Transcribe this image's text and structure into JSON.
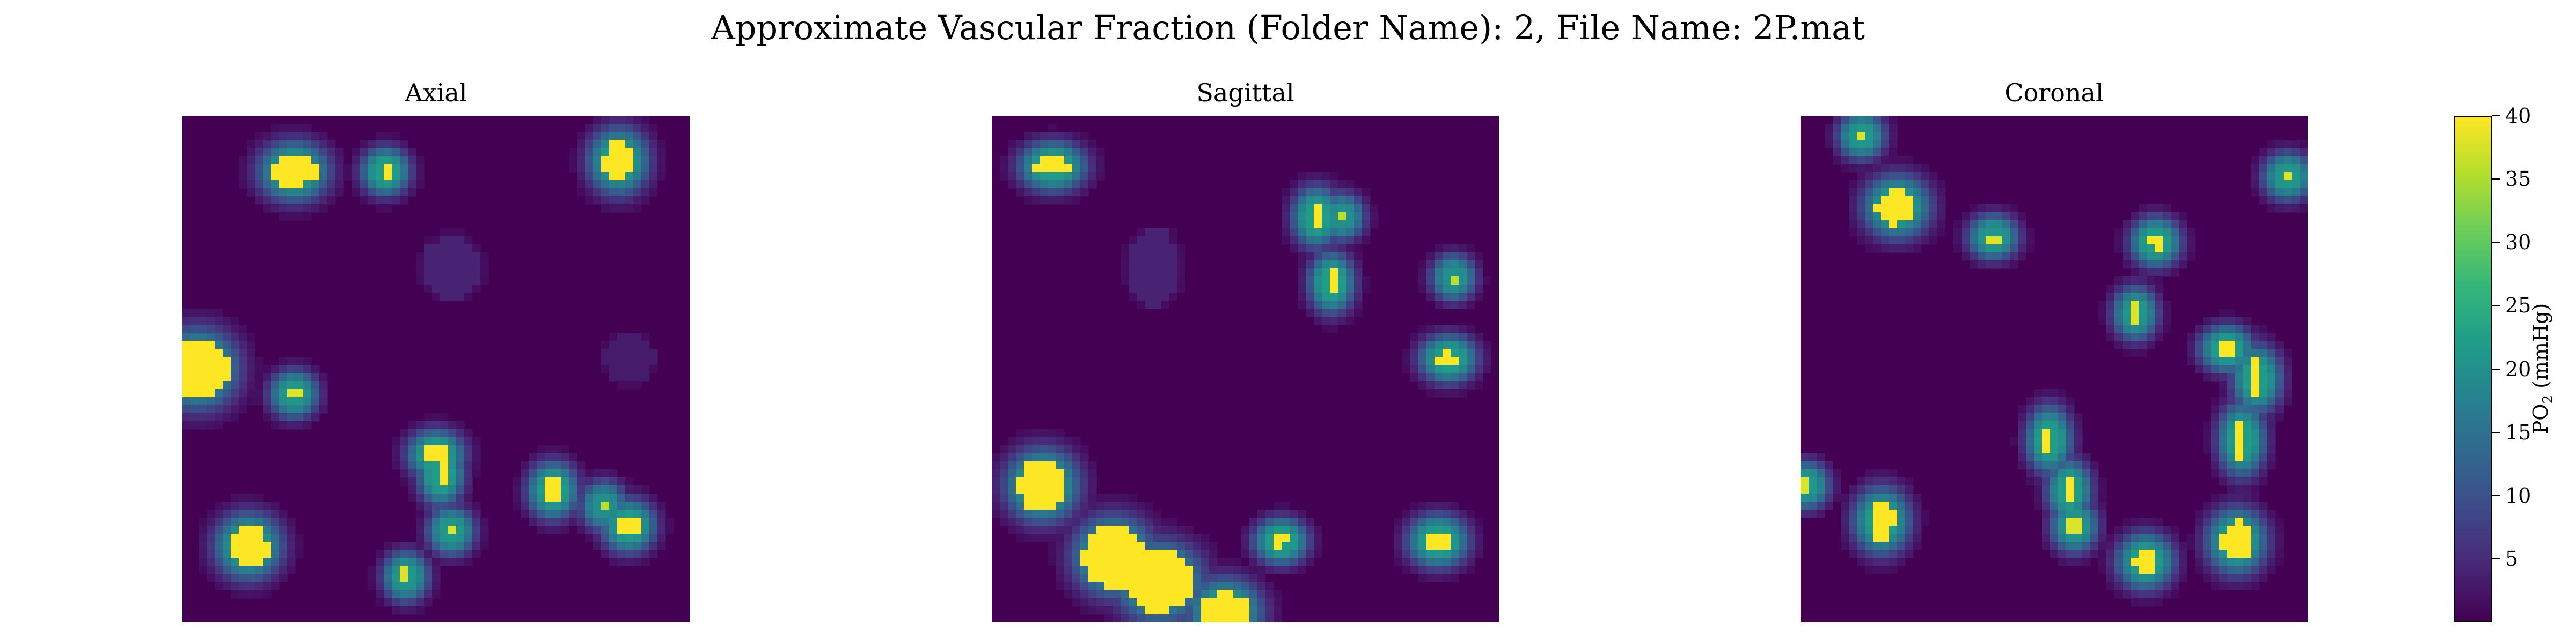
{
  "figure": {
    "title": "Approximate Vascular Fraction (Folder Name): 2, File Name: 2P.mat"
  },
  "colors": {
    "colormap": [
      "#440154",
      "#482777",
      "#3e4a89",
      "#31688e",
      "#26828e",
      "#1f9e89",
      "#35b779",
      "#6ece58",
      "#b5de2b",
      "#fde725"
    ]
  },
  "chart_data": {
    "type": "heatmap",
    "title": "Approximate Vascular Fraction (Folder Name): 2, File Name: 2P.mat",
    "colormap": "viridis",
    "value_range": [
      0,
      40
    ],
    "grid": false,
    "axes_visible": false,
    "panels": [
      {
        "name": "Axial",
        "title": "Axial",
        "hotspots": [
          {
            "x": 0.22,
            "y": 0.11,
            "rx": 0.045,
            "ry": 0.03,
            "peak": 40
          },
          {
            "x": 0.4,
            "y": 0.11,
            "rx": 0.012,
            "ry": 0.012,
            "peak": 40
          },
          {
            "x": 0.86,
            "y": 0.09,
            "rx": 0.03,
            "ry": 0.04,
            "peak": 40
          },
          {
            "x": 0.03,
            "y": 0.5,
            "rx": 0.06,
            "ry": 0.06,
            "peak": 40
          },
          {
            "x": 0.22,
            "y": 0.55,
            "rx": 0.012,
            "ry": 0.012,
            "peak": 38
          },
          {
            "x": 0.5,
            "y": 0.67,
            "rx": 0.025,
            "ry": 0.015,
            "peak": 40
          },
          {
            "x": 0.51,
            "y": 0.71,
            "rx": 0.008,
            "ry": 0.03,
            "peak": 40
          },
          {
            "x": 0.73,
            "y": 0.74,
            "rx": 0.015,
            "ry": 0.025,
            "peak": 40
          },
          {
            "x": 0.88,
            "y": 0.81,
            "rx": 0.02,
            "ry": 0.02,
            "peak": 40
          },
          {
            "x": 0.83,
            "y": 0.77,
            "rx": 0.008,
            "ry": 0.012,
            "peak": 36
          },
          {
            "x": 0.53,
            "y": 0.82,
            "rx": 0.01,
            "ry": 0.012,
            "peak": 38
          },
          {
            "x": 0.13,
            "y": 0.85,
            "rx": 0.04,
            "ry": 0.04,
            "peak": 40
          },
          {
            "x": 0.44,
            "y": 0.91,
            "rx": 0.008,
            "ry": 0.015,
            "peak": 38
          },
          {
            "x": 0.53,
            "y": 0.3,
            "rx": 0.06,
            "ry": 0.06,
            "peak": 4
          },
          {
            "x": 0.88,
            "y": 0.48,
            "rx": 0.05,
            "ry": 0.05,
            "peak": 3
          }
        ]
      },
      {
        "name": "Sagittal",
        "title": "Sagittal",
        "hotspots": [
          {
            "x": 0.12,
            "y": 0.1,
            "rx": 0.04,
            "ry": 0.015,
            "peak": 40
          },
          {
            "x": 0.64,
            "y": 0.2,
            "rx": 0.012,
            "ry": 0.03,
            "peak": 40
          },
          {
            "x": 0.69,
            "y": 0.2,
            "rx": 0.008,
            "ry": 0.01,
            "peak": 36
          },
          {
            "x": 0.67,
            "y": 0.33,
            "rx": 0.008,
            "ry": 0.03,
            "peak": 40
          },
          {
            "x": 0.91,
            "y": 0.32,
            "rx": 0.006,
            "ry": 0.008,
            "peak": 36
          },
          {
            "x": 0.9,
            "y": 0.48,
            "rx": 0.025,
            "ry": 0.012,
            "peak": 40
          },
          {
            "x": 0.1,
            "y": 0.73,
            "rx": 0.05,
            "ry": 0.05,
            "peak": 40
          },
          {
            "x": 0.24,
            "y": 0.87,
            "rx": 0.06,
            "ry": 0.06,
            "peak": 40
          },
          {
            "x": 0.33,
            "y": 0.92,
            "rx": 0.07,
            "ry": 0.06,
            "peak": 40
          },
          {
            "x": 0.46,
            "y": 0.98,
            "rx": 0.05,
            "ry": 0.04,
            "peak": 40
          },
          {
            "x": 0.57,
            "y": 0.84,
            "rx": 0.02,
            "ry": 0.01,
            "peak": 40
          },
          {
            "x": 0.88,
            "y": 0.84,
            "rx": 0.03,
            "ry": 0.02,
            "peak": 40
          },
          {
            "x": 0.32,
            "y": 0.3,
            "rx": 0.05,
            "ry": 0.08,
            "peak": 4
          }
        ]
      },
      {
        "name": "Coronal",
        "title": "Coronal",
        "hotspots": [
          {
            "x": 0.12,
            "y": 0.04,
            "rx": 0.01,
            "ry": 0.01,
            "peak": 38
          },
          {
            "x": 0.96,
            "y": 0.12,
            "rx": 0.012,
            "ry": 0.012,
            "peak": 38
          },
          {
            "x": 0.19,
            "y": 0.18,
            "rx": 0.04,
            "ry": 0.035,
            "peak": 40
          },
          {
            "x": 0.38,
            "y": 0.24,
            "rx": 0.015,
            "ry": 0.008,
            "peak": 38
          },
          {
            "x": 0.7,
            "y": 0.25,
            "rx": 0.015,
            "ry": 0.015,
            "peak": 40
          },
          {
            "x": 0.66,
            "y": 0.39,
            "rx": 0.006,
            "ry": 0.02,
            "peak": 38
          },
          {
            "x": 0.84,
            "y": 0.46,
            "rx": 0.02,
            "ry": 0.01,
            "peak": 40
          },
          {
            "x": 0.9,
            "y": 0.52,
            "rx": 0.012,
            "ry": 0.04,
            "peak": 40
          },
          {
            "x": 0.87,
            "y": 0.64,
            "rx": 0.01,
            "ry": 0.05,
            "peak": 40
          },
          {
            "x": 0.49,
            "y": 0.64,
            "rx": 0.008,
            "ry": 0.04,
            "peak": 40
          },
          {
            "x": 0.53,
            "y": 0.74,
            "rx": 0.006,
            "ry": 0.03,
            "peak": 40
          },
          {
            "x": 0.01,
            "y": 0.73,
            "rx": 0.01,
            "ry": 0.01,
            "peak": 38
          },
          {
            "x": 0.16,
            "y": 0.8,
            "rx": 0.025,
            "ry": 0.04,
            "peak": 40
          },
          {
            "x": 0.54,
            "y": 0.81,
            "rx": 0.01,
            "ry": 0.02,
            "peak": 38
          },
          {
            "x": 0.68,
            "y": 0.88,
            "rx": 0.025,
            "ry": 0.025,
            "peak": 40
          },
          {
            "x": 0.86,
            "y": 0.84,
            "rx": 0.03,
            "ry": 0.04,
            "peak": 40
          }
        ]
      }
    ],
    "colorbar": {
      "label": "PO",
      "label_subscript": "2",
      "label_unit": " (mmHg)",
      "ticks": [
        5,
        10,
        15,
        20,
        25,
        30,
        35,
        40
      ],
      "range": [
        0,
        40
      ]
    }
  }
}
